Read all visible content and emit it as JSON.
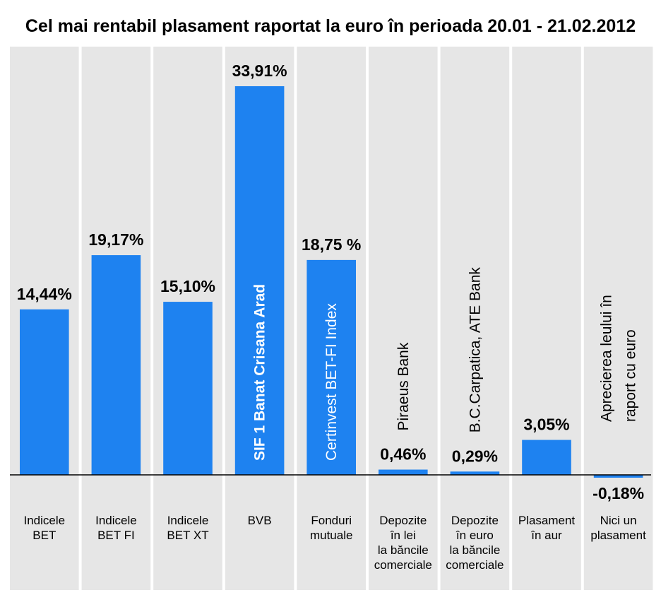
{
  "chart_data": {
    "type": "bar",
    "title": "Cel mai rentabil plasament raportat la euro în perioada 20.01 - 21.02.2012",
    "categories": [
      [
        "Indicele",
        "BET"
      ],
      [
        "Indicele",
        "BET FI"
      ],
      [
        "Indicele",
        "BET XT"
      ],
      [
        "BVB"
      ],
      [
        "Fonduri",
        "mutuale"
      ],
      [
        "Depozite",
        "în lei",
        "la băncile",
        "comerciale"
      ],
      [
        "Depozite",
        "în euro",
        "la băncile",
        "comerciale"
      ],
      [
        "Plasament",
        "în aur"
      ],
      [
        "Nici un",
        "plasament"
      ]
    ],
    "values": [
      14.44,
      19.17,
      15.1,
      33.91,
      18.75,
      0.46,
      0.29,
      3.05,
      -0.18
    ],
    "value_labels": [
      "14,44%",
      "19,17%",
      "15,10%",
      "33,91%",
      "18,75 %",
      "0,46%",
      "0,29%",
      "3,05%",
      "-0,18%"
    ],
    "bar_notes": [
      [],
      [],
      [],
      [
        "SIF 1 Banat Crisana Arad"
      ],
      [
        "Certinvest BET-FI Index"
      ],
      [
        "Piraeus Bank"
      ],
      [
        "B.C.Carpatica, ATE Bank"
      ],
      [],
      [
        "Aprecierea leului în",
        "raport cu euro"
      ]
    ],
    "ylim": [
      -1,
      36
    ],
    "xlabel": "",
    "ylabel": "",
    "grid": false,
    "colors": {
      "bar": "#1e82f0",
      "panel": "#e6e6e6",
      "inner_text_on_bar": "#ffffff",
      "inner_text_on_panel": "#000000"
    }
  }
}
